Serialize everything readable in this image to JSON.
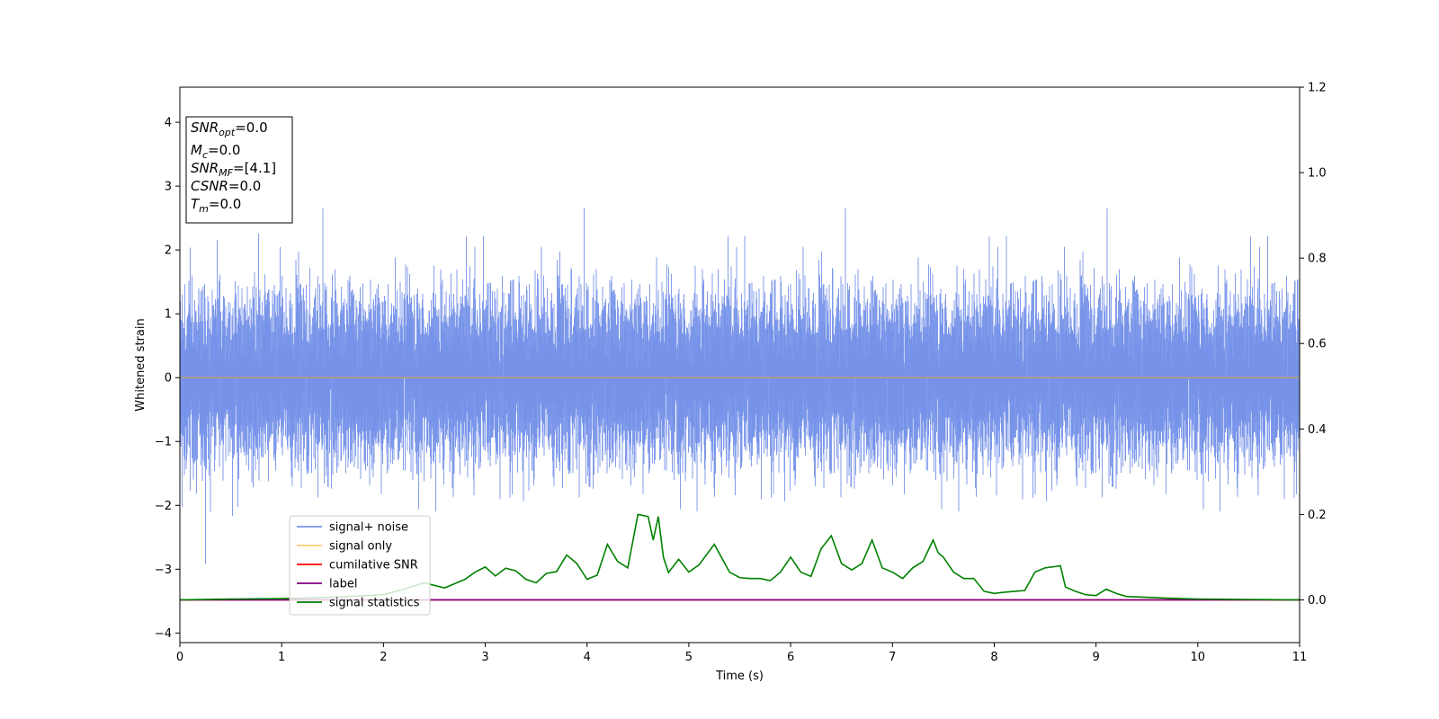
{
  "chart_data": {
    "type": "line",
    "xlabel": "Time (s)",
    "ylabel": "Whitened strain",
    "xlim": [
      0,
      11
    ],
    "ylim": [
      -4.15,
      4.55
    ],
    "y2lim": [
      -0.1,
      1.2
    ],
    "xticks": [
      0,
      1,
      2,
      3,
      4,
      5,
      6,
      7,
      8,
      9,
      10,
      11
    ],
    "yticks": [
      -4,
      -3,
      -2,
      -1,
      0,
      1,
      2,
      3,
      4
    ],
    "y2ticks": [
      0.0,
      0.2,
      0.4,
      0.6,
      0.8,
      1.0,
      1.2
    ],
    "grid": false,
    "legend_position": "lower-left",
    "annotation": {
      "snr_opt": {
        "symbol": "SNR",
        "sub": "opt",
        "value": "=0.0"
      },
      "mc": {
        "symbol": "M",
        "sub": "c",
        "value": "=0.0"
      },
      "snr_mf": {
        "symbol": "SNR",
        "sub": "MF",
        "value": "=[4.1]"
      },
      "csnr": {
        "symbol": "CSNR",
        "sub": "",
        "value": "=0.0"
      },
      "tm": {
        "symbol": "T",
        "sub": "m",
        "value": "=0.0"
      }
    },
    "series": [
      {
        "name": "signal+ noise",
        "color": "#4169e1",
        "axis": "left",
        "description_ref": "noise"
      },
      {
        "name": "signal only",
        "color": "#ffa500",
        "axis": "left",
        "x": [
          0,
          11
        ],
        "y": [
          0,
          0
        ]
      },
      {
        "name": "cumilative SNR",
        "color": "#ff0000",
        "axis": "right",
        "x": [
          0,
          11
        ],
        "y": [
          0,
          0
        ]
      },
      {
        "name": "label",
        "color": "#800080",
        "axis": "right",
        "x": [
          0,
          11
        ],
        "y": [
          0,
          0
        ]
      },
      {
        "name": "signal statistics",
        "color": "#008000",
        "axis": "right",
        "x": [
          0,
          0.5,
          1.0,
          1.5,
          2.0,
          2.2,
          2.4,
          2.6,
          2.8,
          2.9,
          3.0,
          3.1,
          3.2,
          3.3,
          3.4,
          3.5,
          3.6,
          3.7,
          3.8,
          3.9,
          4.0,
          4.1,
          4.2,
          4.3,
          4.4,
          4.5,
          4.6,
          4.65,
          4.7,
          4.75,
          4.8,
          4.9,
          5.0,
          5.1,
          5.25,
          5.4,
          5.5,
          5.6,
          5.7,
          5.8,
          5.9,
          6.0,
          6.1,
          6.2,
          6.3,
          6.4,
          6.5,
          6.6,
          6.7,
          6.8,
          6.9,
          7.0,
          7.1,
          7.2,
          7.3,
          7.4,
          7.45,
          7.5,
          7.6,
          7.7,
          7.8,
          7.9,
          8.0,
          8.1,
          8.2,
          8.3,
          8.4,
          8.5,
          8.6,
          8.65,
          8.7,
          8.8,
          8.9,
          9.0,
          9.1,
          9.2,
          9.3,
          9.5,
          9.7,
          10.0,
          10.5,
          11.0
        ],
        "y": [
          0.0,
          0.002,
          0.003,
          0.006,
          0.012,
          0.025,
          0.04,
          0.028,
          0.048,
          0.065,
          0.077,
          0.056,
          0.074,
          0.068,
          0.048,
          0.04,
          0.062,
          0.066,
          0.105,
          0.085,
          0.048,
          0.058,
          0.13,
          0.09,
          0.075,
          0.2,
          0.195,
          0.14,
          0.195,
          0.1,
          0.064,
          0.095,
          0.065,
          0.082,
          0.13,
          0.065,
          0.052,
          0.05,
          0.05,
          0.045,
          0.065,
          0.1,
          0.065,
          0.055,
          0.12,
          0.15,
          0.085,
          0.07,
          0.085,
          0.14,
          0.075,
          0.065,
          0.05,
          0.075,
          0.09,
          0.14,
          0.11,
          0.1,
          0.065,
          0.05,
          0.05,
          0.02,
          0.015,
          0.018,
          0.02,
          0.022,
          0.065,
          0.075,
          0.078,
          0.08,
          0.03,
          0.02,
          0.012,
          0.01,
          0.025,
          0.015,
          0.008,
          0.006,
          0.004,
          0.002,
          0.001,
          0.0
        ]
      }
    ],
    "legend": [
      "signal+ noise",
      "signal only",
      "cumilative SNR",
      "label",
      "signal statistics"
    ]
  }
}
